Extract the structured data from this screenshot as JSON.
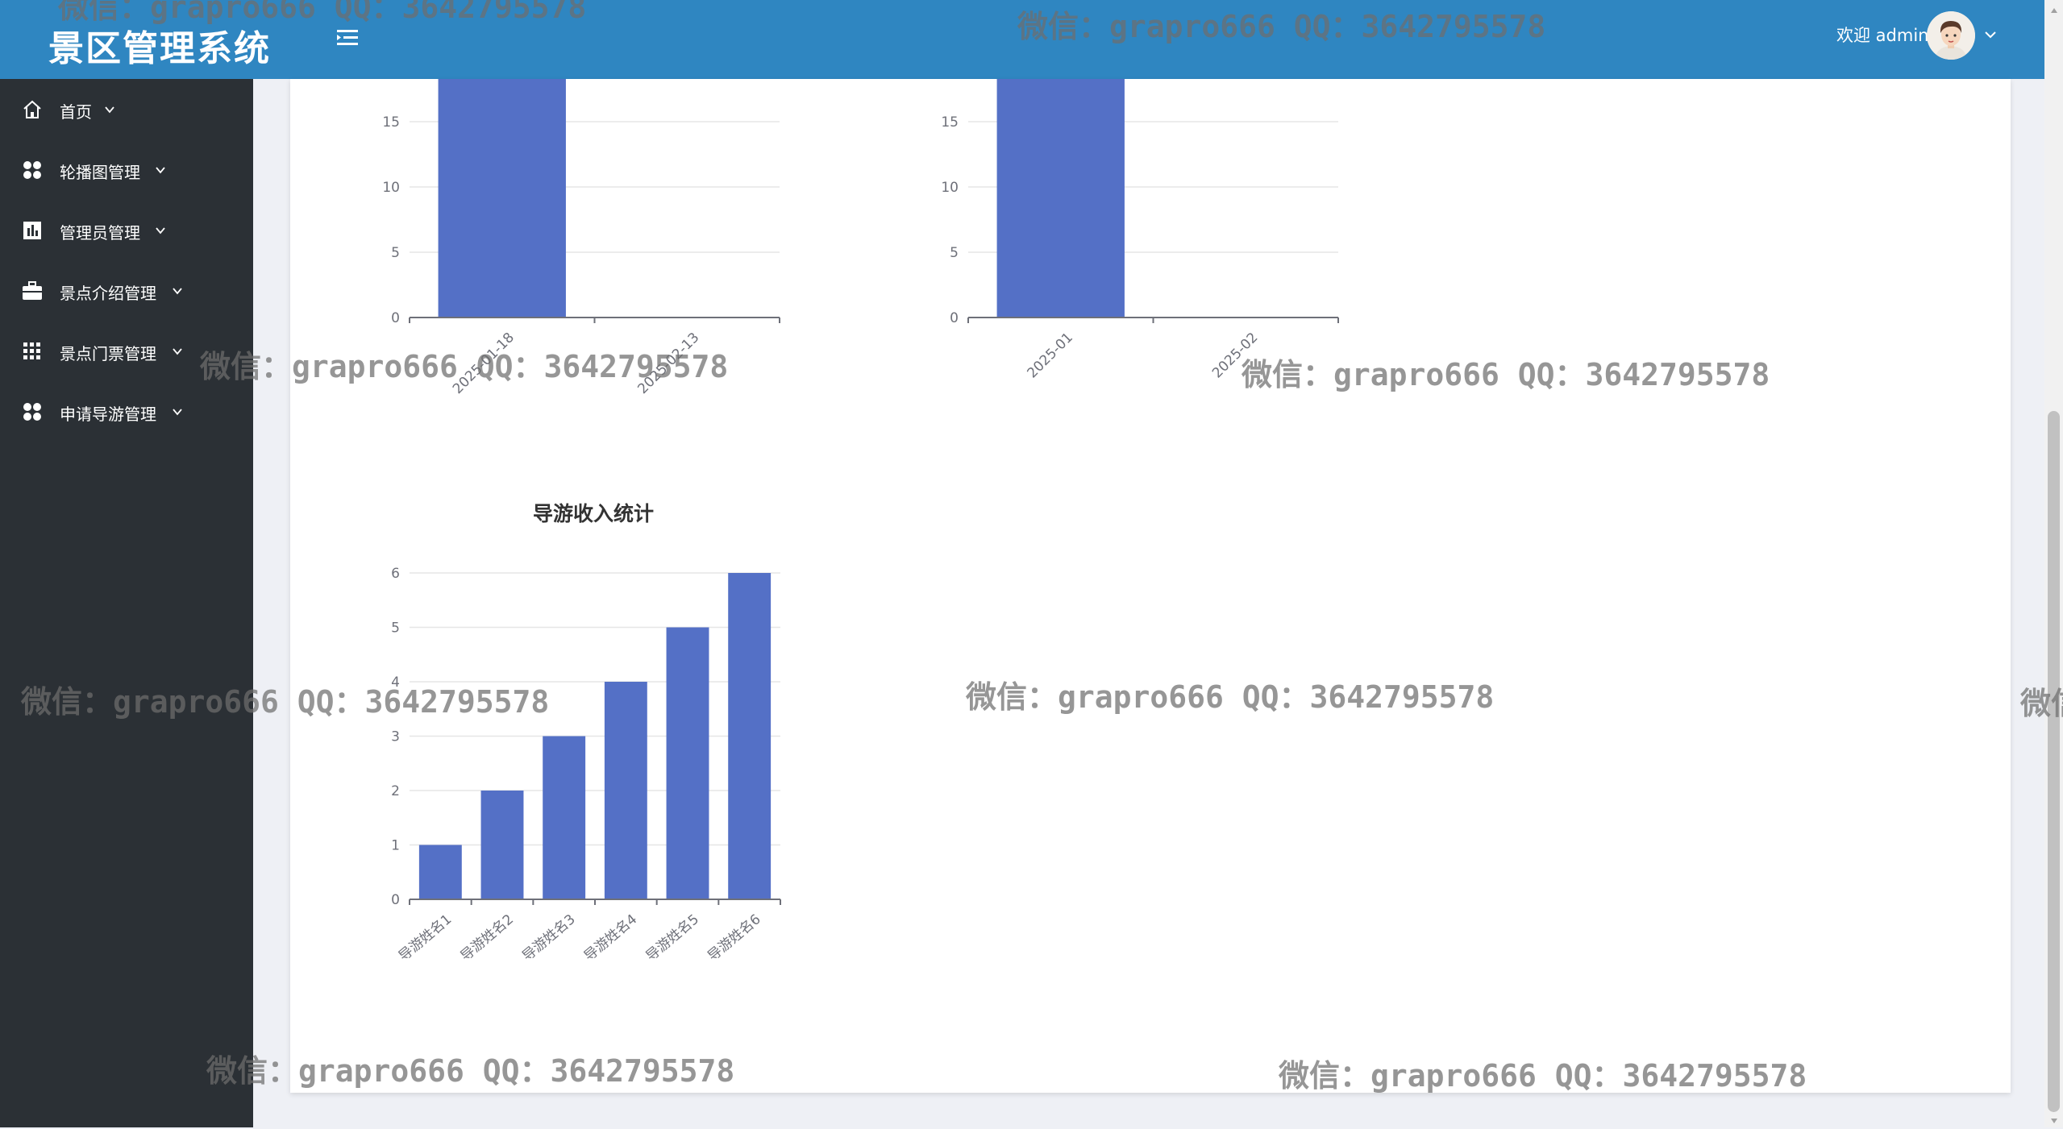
{
  "header": {
    "app_title": "景区管理系统",
    "welcome_text": "欢迎 admin",
    "colors": {
      "header_bg": "#2f86c1",
      "sidebar_bg": "#2b3035",
      "bar": "#5470c6"
    }
  },
  "sidebar": {
    "items": [
      {
        "label": "首页",
        "icon": "home-icon"
      },
      {
        "label": "轮播图管理",
        "icon": "grid-four-icon"
      },
      {
        "label": "管理员管理",
        "icon": "chart-bar-icon"
      },
      {
        "label": "景点介绍管理",
        "icon": "briefcase-icon"
      },
      {
        "label": "景点门票管理",
        "icon": "apps-grid-icon"
      },
      {
        "label": "申请导游管理",
        "icon": "grid-four-icon"
      }
    ]
  },
  "watermark": "微信：grapro666 QQ：3642795578",
  "chart_data": [
    {
      "type": "bar",
      "title": "",
      "categories": [
        "2025-01-18",
        "2025-02-13"
      ],
      "series": [
        {
          "values": [
            20,
            0
          ]
        }
      ],
      "y_ticks": [
        "0",
        "5",
        "10",
        "15"
      ],
      "ylim": [
        0,
        20
      ],
      "grid": true,
      "note_partial": "chart top cut off by scroll"
    },
    {
      "type": "bar",
      "title": "",
      "categories": [
        "2025-01",
        "2025-02"
      ],
      "series": [
        {
          "values": [
            20,
            0
          ]
        }
      ],
      "y_ticks": [
        "0",
        "5",
        "10",
        "15"
      ],
      "ylim": [
        0,
        20
      ],
      "grid": true
    },
    {
      "type": "bar",
      "title": "导游收入统计",
      "categories": [
        "导游姓名1",
        "导游姓名2",
        "导游姓名3",
        "导游姓名4",
        "导游姓名5",
        "导游姓名6"
      ],
      "series": [
        {
          "values": [
            1,
            2,
            3,
            4,
            5,
            6
          ]
        }
      ],
      "y_ticks": [
        "0",
        "1",
        "2",
        "3",
        "4",
        "5",
        "6"
      ],
      "ylim": [
        0,
        6
      ],
      "grid": true
    }
  ]
}
